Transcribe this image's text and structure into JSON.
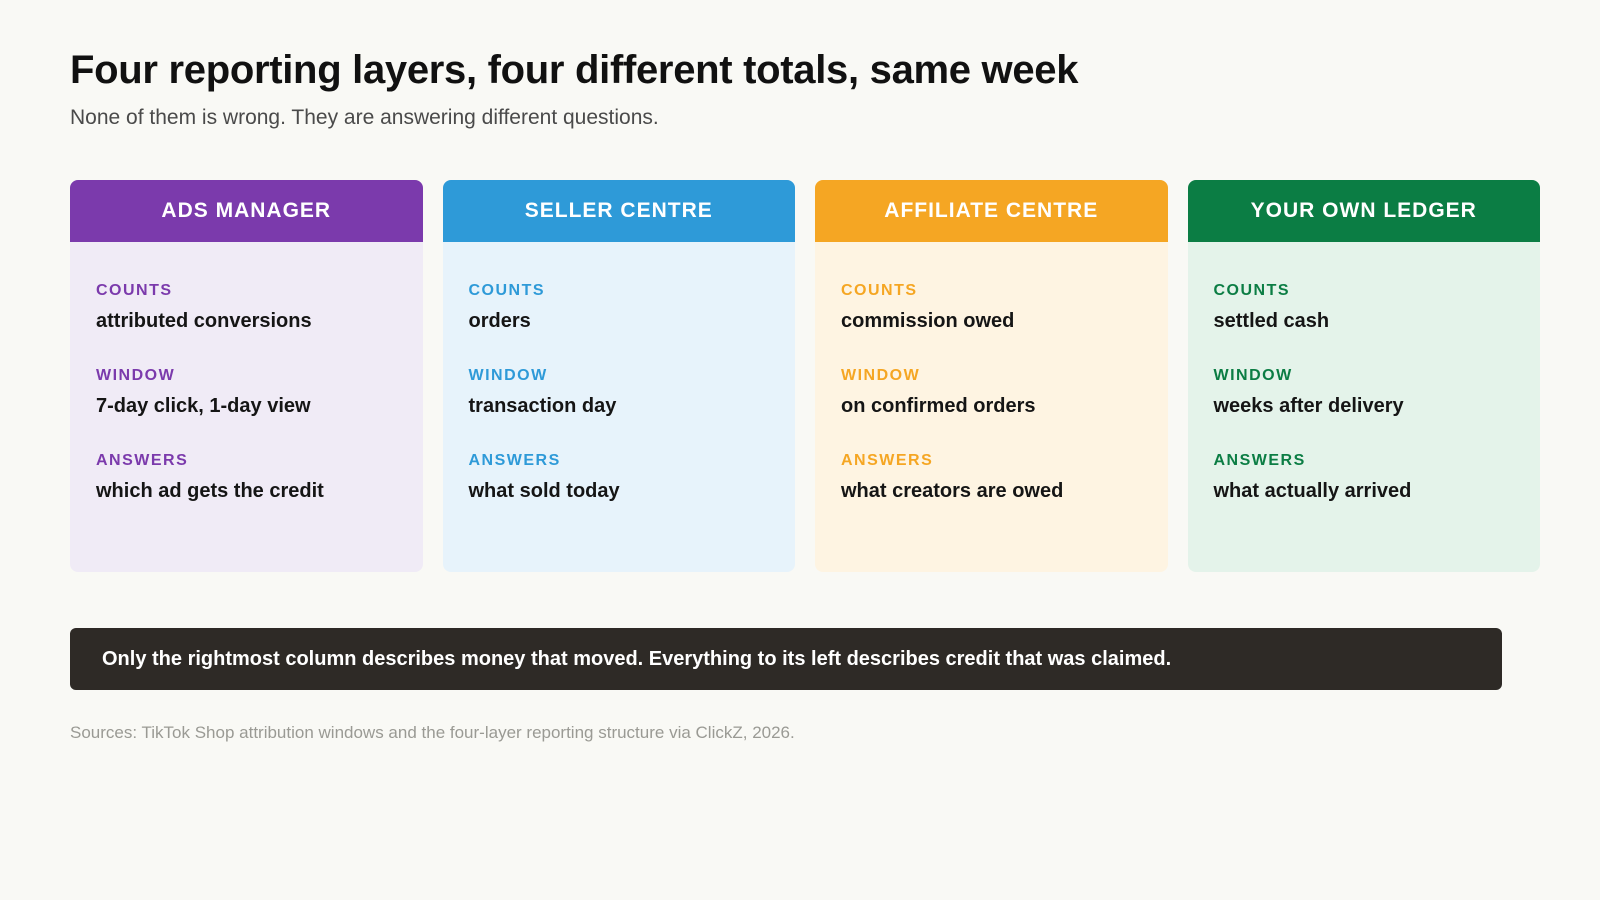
{
  "title": "Four reporting layers, four different totals, same week",
  "subtitle": "None of them is wrong. They are answering different questions.",
  "cards": [
    {
      "header": "ADS MANAGER",
      "accent": "#7b3aac",
      "background": "#f0ebf6",
      "fields": [
        {
          "label": "COUNTS",
          "value": "attributed conversions"
        },
        {
          "label": "WINDOW",
          "value": "7-day click, 1-day view"
        },
        {
          "label": "ANSWERS",
          "value": "which ad gets the credit"
        }
      ]
    },
    {
      "header": "SELLER CENTRE",
      "accent": "#2e9ad8",
      "background": "#e7f3fb",
      "fields": [
        {
          "label": "COUNTS",
          "value": "orders"
        },
        {
          "label": "WINDOW",
          "value": "transaction day"
        },
        {
          "label": "ANSWERS",
          "value": "what sold today"
        }
      ]
    },
    {
      "header": "AFFILIATE CENTRE",
      "accent": "#f5a623",
      "background": "#fef4e2",
      "fields": [
        {
          "label": "COUNTS",
          "value": "commission owed"
        },
        {
          "label": "WINDOW",
          "value": "on confirmed orders"
        },
        {
          "label": "ANSWERS",
          "value": "what creators are owed"
        }
      ]
    },
    {
      "header": "YOUR OWN LEDGER",
      "accent": "#0b7d44",
      "background": "#e4f3ea",
      "fields": [
        {
          "label": "COUNTS",
          "value": "settled cash"
        },
        {
          "label": "WINDOW",
          "value": "weeks after delivery"
        },
        {
          "label": "ANSWERS",
          "value": "what actually arrived"
        }
      ]
    }
  ],
  "callout": "Only the rightmost column describes money that moved. Everything to its left describes credit that was claimed.",
  "sources": "Sources: TikTok Shop attribution windows and the four-layer reporting structure via ClickZ, 2026."
}
